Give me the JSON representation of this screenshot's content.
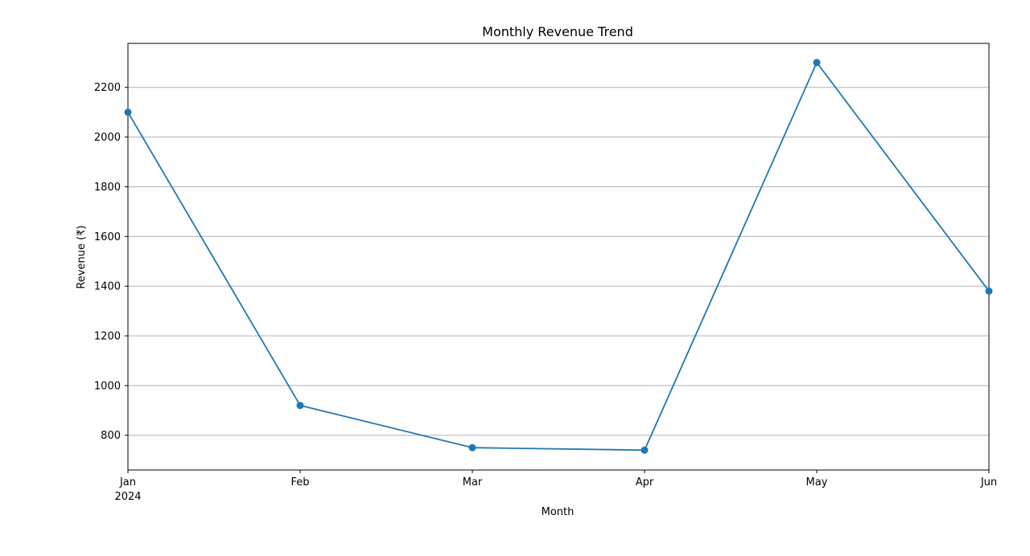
{
  "chart_data": {
    "type": "line",
    "title": "Monthly Revenue Trend",
    "xlabel": "Month",
    "ylabel": "Revenue (₹)",
    "x": [
      "Jan",
      "Feb",
      "Mar",
      "Apr",
      "May",
      "Jun"
    ],
    "x_year_label": "2024",
    "series": [
      {
        "values": [
          2100,
          920,
          750,
          740,
          2300,
          1380
        ],
        "color": "#1f77b4",
        "marker": "circle"
      }
    ],
    "yticks": [
      800,
      1000,
      1200,
      1400,
      1600,
      1800,
      2000,
      2200
    ],
    "ylim": [
      660,
      2377
    ],
    "grid": {
      "x": false,
      "y": true
    },
    "grid_color": "#b0b0b0"
  }
}
